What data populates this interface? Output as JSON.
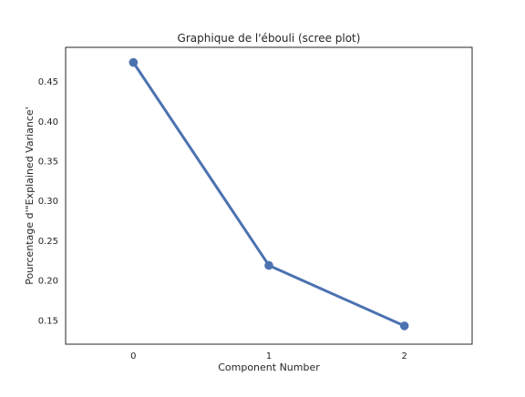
{
  "chart_data": {
    "type": "line",
    "title": "Graphique de l'ébouli (scree plot)",
    "xlabel": "Component Number",
    "ylabel": "Pourcentage d'\"Explained Variance'",
    "categories": [
      "0",
      "1",
      "2"
    ],
    "x": [
      0,
      1,
      2
    ],
    "series": [
      {
        "values": [
          0.474,
          0.219,
          0.143
        ],
        "color": "#4c72b0",
        "marker": "circle"
      }
    ],
    "xlim": [
      -0.5,
      2.5
    ],
    "ylim": [
      0.12,
      0.493
    ],
    "yticks": [
      0.15,
      0.2,
      0.25,
      0.3,
      0.35,
      0.4,
      0.45
    ],
    "ytick_labels": [
      "0.15",
      "0.20",
      "0.25",
      "0.30",
      "0.35",
      "0.40",
      "0.45"
    ],
    "grid": false,
    "legend": "none"
  }
}
